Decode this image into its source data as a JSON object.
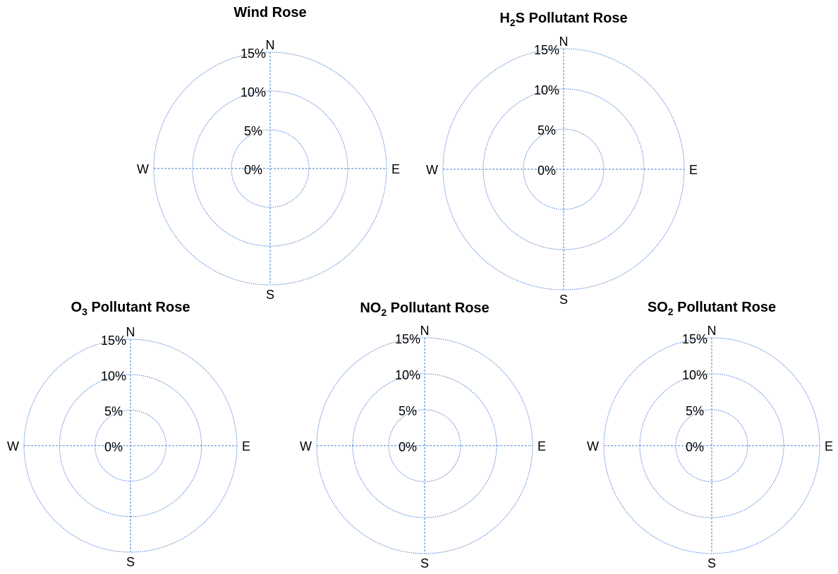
{
  "colors": {
    "grid": "#4a7fd0",
    "text": "#000000"
  },
  "chart_data": [
    {
      "type": "radar",
      "title": "Wind Rose",
      "title_parts": [
        {
          "text": "Wind Rose",
          "sub": false
        }
      ],
      "directions": [
        "N",
        "E",
        "S",
        "W"
      ],
      "radial_ticks": [
        "0%",
        "5%",
        "10%",
        "15%"
      ],
      "rlim": [
        0,
        15
      ],
      "grid": true,
      "series": []
    },
    {
      "type": "radar",
      "title": "H2S Pollutant Rose",
      "title_parts": [
        {
          "text": "H",
          "sub": false
        },
        {
          "text": "2",
          "sub": true
        },
        {
          "text": "S Pollutant Rose",
          "sub": false
        }
      ],
      "directions": [
        "N",
        "E",
        "S",
        "W"
      ],
      "radial_ticks": [
        "0%",
        "5%",
        "10%",
        "15%"
      ],
      "rlim": [
        0,
        15
      ],
      "grid": true,
      "series": []
    },
    {
      "type": "radar",
      "title": "O3 Pollutant Rose",
      "title_parts": [
        {
          "text": "O",
          "sub": false
        },
        {
          "text": "3",
          "sub": true
        },
        {
          "text": " Pollutant Rose",
          "sub": false
        }
      ],
      "directions": [
        "N",
        "E",
        "S",
        "W"
      ],
      "radial_ticks": [
        "0%",
        "5%",
        "10%",
        "15%"
      ],
      "rlim": [
        0,
        15
      ],
      "grid": true,
      "series": []
    },
    {
      "type": "radar",
      "title": "NO2 Pollutant Rose",
      "title_parts": [
        {
          "text": "NO",
          "sub": false
        },
        {
          "text": "2",
          "sub": true
        },
        {
          "text": " Pollutant Rose",
          "sub": false
        }
      ],
      "directions": [
        "N",
        "E",
        "S",
        "W"
      ],
      "radial_ticks": [
        "0%",
        "5%",
        "10%",
        "15%"
      ],
      "rlim": [
        0,
        15
      ],
      "grid": true,
      "series": []
    },
    {
      "type": "radar",
      "title": "SO2 Pollutant Rose",
      "title_parts": [
        {
          "text": "SO",
          "sub": false
        },
        {
          "text": "2",
          "sub": true
        },
        {
          "text": "  Pollutant Rose",
          "sub": false
        }
      ],
      "directions": [
        "N",
        "E",
        "S",
        "W"
      ],
      "radial_ticks": [
        "0%",
        "5%",
        "10%",
        "15%"
      ],
      "rlim": [
        0,
        15
      ],
      "grid": true,
      "series": []
    }
  ]
}
